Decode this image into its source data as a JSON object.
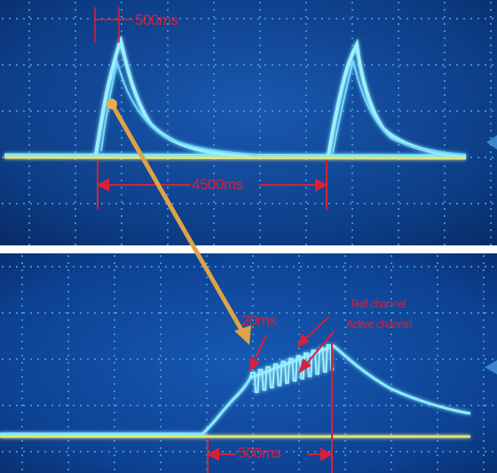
{
  "top_panel": {
    "label_pulse_width": "500ms",
    "label_period": "4500ms"
  },
  "bottom_panel": {
    "label_step": "20ms",
    "label_ref_channel": "Ref channel",
    "label_active_channel": "Active channel",
    "label_duration": "500ms"
  },
  "colors": {
    "screen_background": "#0d3d86",
    "trace_cyan": "#7fe9ff",
    "trace_yellow": "#e2e47a",
    "grid": "#3c8fd6",
    "annotation_red": "#d8203a",
    "arrow_orange": "#dea247"
  }
}
